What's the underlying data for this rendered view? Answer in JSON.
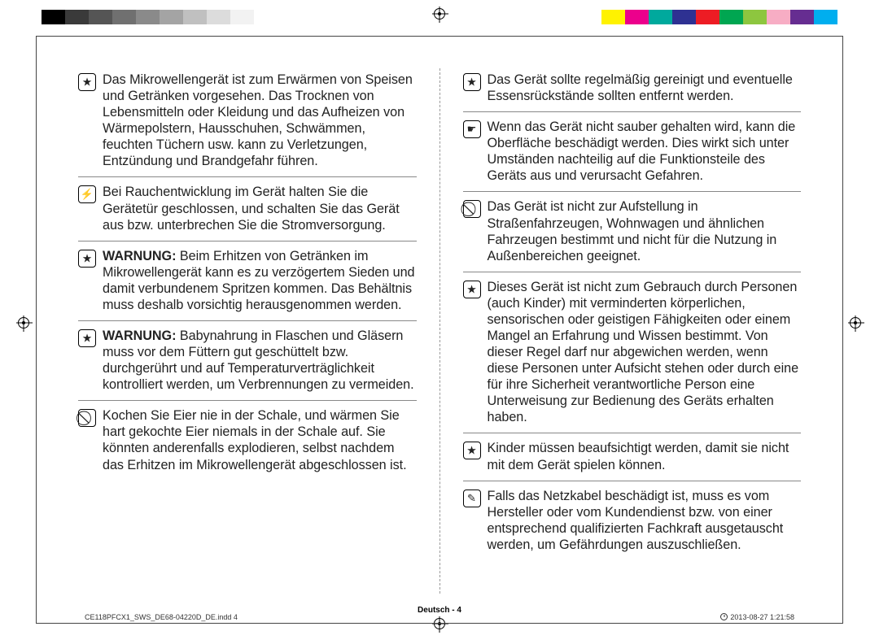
{
  "colorbar_left": [
    "#000000",
    "#3a3a3a",
    "#555555",
    "#707070",
    "#8a8a8a",
    "#a4a4a4",
    "#c0c0c0",
    "#dcdcdc",
    "#f2f2f2",
    "#ffffff"
  ],
  "colorbar_right": [
    "#fff200",
    "#ec008c",
    "#00a99d",
    "#2e3192",
    "#ed1c24",
    "#00a651",
    "#8dc63f",
    "#f7adc4",
    "#662d91",
    "#00aeef"
  ],
  "left_column": [
    {
      "icon": "star",
      "text": "Das Mikrowellengerät ist zum Erwärmen von Speisen und Getränken vorgesehen. Das Trocknen von Lebensmitteln oder Kleidung und das Aufheizen von Wärmepolstern, Hausschuhen, Schwämmen, feuchten Tüchern usw. kann zu Verletzungen, Entzündung und Brandgefahr führen."
    },
    {
      "icon": "plug",
      "text": "Bei Rauchentwicklung im Gerät halten Sie die Gerätetür geschlossen, und schalten Sie das Gerät aus bzw. unterbrechen Sie die Stromversorgung."
    },
    {
      "icon": "star",
      "bold": "WARNUNG:",
      "text": " Beim Erhitzen von Getränken im Mikrowellengerät kann es zu verzögertem Sieden und damit verbundenem Spritzen kommen. Das Behältnis muss deshalb vorsichtig herausgenommen werden."
    },
    {
      "icon": "star",
      "bold": "WARNUNG:",
      "text": " Babynahrung in Flaschen und Gläsern muss vor dem Füttern gut geschüttelt bzw. durchgerührt und auf Temperaturverträglichkeit kontrolliert werden, um Verbrennungen zu vermeiden."
    },
    {
      "icon": "prohibit",
      "text": "Kochen Sie Eier nie in der Schale, und wärmen Sie hart gekochte Eier niemals in der Schale auf. Sie könnten anderenfalls explodieren, selbst nachdem das Erhitzen im Mikrowellengerät abgeschlossen ist."
    }
  ],
  "right_column": [
    {
      "icon": "star",
      "text": "Das Gerät sollte regelmäßig gereinigt und eventuelle Essensrückstände sollten entfernt werden."
    },
    {
      "icon": "hand",
      "text": "Wenn das Gerät nicht sauber gehalten wird, kann die Oberfläche beschädigt werden. Dies wirkt sich unter Umständen nachteilig auf die Funktionsteile des Geräts aus und verursacht Gefahren."
    },
    {
      "icon": "prohibit",
      "text": "Das Gerät ist nicht zur Aufstellung in Straßenfahrzeugen, Wohnwagen und ähnlichen Fahrzeugen bestimmt und nicht für die Nutzung in Außenbereichen geeignet."
    },
    {
      "icon": "star",
      "text": "Dieses Gerät ist nicht zum Gebrauch durch Personen (auch Kinder) mit verminderten körperlichen, sensorischen oder geistigen Fähigkeiten oder einem Mangel an Erfahrung und Wissen bestimmt. Von dieser Regel darf nur abgewichen werden, wenn diese Personen unter Aufsicht stehen oder durch eine für ihre Sicherheit verantwortliche Person eine Unterweisung zur Bedienung des Geräts erhalten haben."
    },
    {
      "icon": "star",
      "text": "Kinder müssen beaufsichtigt werden, damit sie nicht mit dem Gerät spielen können."
    },
    {
      "icon": "wrench",
      "text": "Falls das Netzkabel beschädigt ist, muss es vom Hersteller oder vom Kundendienst bzw. von einer entsprechend qualifizierten Fachkraft ausgetauscht werden, um Gefährdungen auszuschließen."
    }
  ],
  "icon_glyphs": {
    "star": "★",
    "plug": "⚡",
    "prohibit": "⃠",
    "hand": "☛",
    "wrench": "✎"
  },
  "footer": {
    "center": "Deutsch - 4",
    "file": "CE118PFCX1_SWS_DE68-04220D_DE.indd   4",
    "timestamp": "2013-08-27    1:21:58"
  }
}
